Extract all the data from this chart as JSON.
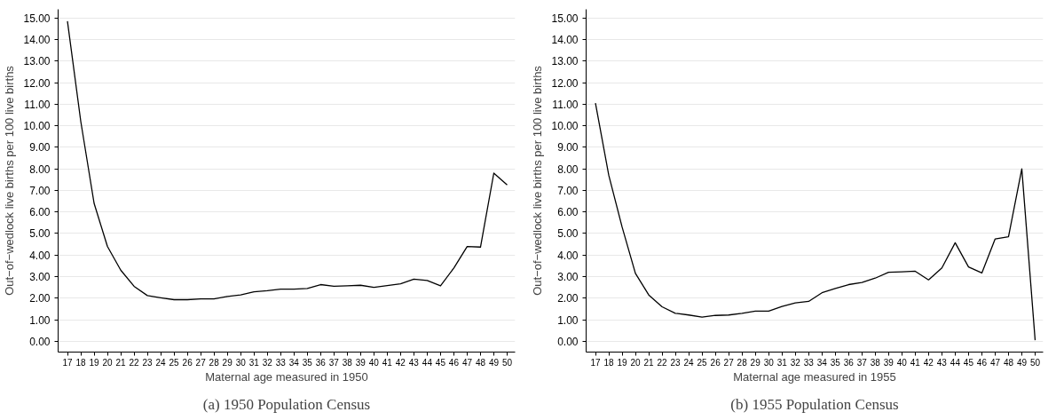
{
  "chart_data": [
    {
      "type": "line",
      "xlabel": "Maternal age measured in 1950",
      "ylabel": "Out−of−wedlock live births per 100 live births",
      "annotations": [
        "(a) 1950 Population Census"
      ],
      "x": [
        17,
        18,
        19,
        20,
        21,
        22,
        23,
        24,
        25,
        26,
        27,
        28,
        29,
        30,
        31,
        32,
        33,
        34,
        35,
        36,
        37,
        38,
        39,
        40,
        41,
        42,
        43,
        44,
        45,
        46,
        47,
        48,
        49,
        50
      ],
      "series": [
        {
          "color": "#000000",
          "values": [
            14.85,
            10.2,
            6.4,
            4.4,
            3.3,
            2.55,
            2.12,
            2.02,
            1.93,
            1.93,
            1.97,
            1.97,
            2.08,
            2.15,
            2.3,
            2.35,
            2.42,
            2.42,
            2.45,
            2.63,
            2.55,
            2.57,
            2.6,
            2.5,
            2.58,
            2.67,
            2.88,
            2.82,
            2.57,
            3.4,
            4.4,
            4.37,
            7.8,
            7.25
          ]
        }
      ],
      "xlim": [
        16.3,
        50.6
      ],
      "xticks": [
        17,
        18,
        19,
        20,
        21,
        22,
        23,
        24,
        25,
        26,
        27,
        28,
        29,
        30,
        31,
        32,
        33,
        34,
        35,
        36,
        37,
        38,
        39,
        40,
        41,
        42,
        43,
        44,
        45,
        46,
        47,
        48,
        49,
        50
      ],
      "ylim": [
        -0.5,
        15.4
      ],
      "yticks": [
        {
          "value": 0,
          "label": "0.00"
        },
        {
          "value": 1,
          "label": "1.00"
        },
        {
          "value": 2,
          "label": "2.00"
        },
        {
          "value": 3,
          "label": "3.00"
        },
        {
          "value": 4,
          "label": "4.00"
        },
        {
          "value": 5,
          "label": "5.00"
        },
        {
          "value": 6,
          "label": "6.00"
        },
        {
          "value": 7,
          "label": "7.00"
        },
        {
          "value": 8,
          "label": "8.00"
        },
        {
          "value": 9,
          "label": "9.00"
        },
        {
          "value": 10,
          "label": "10.00"
        },
        {
          "value": 11,
          "label": "11.00"
        },
        {
          "value": 12,
          "label": "12.00"
        },
        {
          "value": 13,
          "label": "13.00"
        },
        {
          "value": 14,
          "label": "14.00"
        },
        {
          "value": 15,
          "label": "15.00"
        }
      ],
      "grid": "y",
      "marker": "none",
      "line_style": "solid"
    },
    {
      "type": "line",
      "xlabel": "Maternal age measured in 1955",
      "ylabel": "Out−of−wedlock live births per 100 live births",
      "annotations": [
        "(b) 1955 Population Census"
      ],
      "x": [
        17,
        18,
        19,
        20,
        21,
        22,
        23,
        24,
        25,
        26,
        27,
        28,
        29,
        30,
        31,
        32,
        33,
        34,
        35,
        36,
        37,
        38,
        39,
        40,
        41,
        42,
        43,
        44,
        45,
        46,
        47,
        48,
        49,
        50
      ],
      "series": [
        {
          "color": "#000000",
          "values": [
            11.05,
            7.7,
            5.3,
            3.15,
            2.15,
            1.6,
            1.3,
            1.22,
            1.12,
            1.2,
            1.22,
            1.3,
            1.4,
            1.4,
            1.62,
            1.78,
            1.85,
            2.25,
            2.45,
            2.63,
            2.73,
            2.93,
            3.2,
            3.22,
            3.25,
            2.85,
            3.4,
            4.57,
            3.45,
            3.17,
            4.75,
            4.85,
            8.0,
            0.05
          ]
        }
      ],
      "xlim": [
        16.3,
        50.6
      ],
      "xticks": [
        17,
        18,
        19,
        20,
        21,
        22,
        23,
        24,
        25,
        26,
        27,
        28,
        29,
        30,
        31,
        32,
        33,
        34,
        35,
        36,
        37,
        38,
        39,
        40,
        41,
        42,
        43,
        44,
        45,
        46,
        47,
        48,
        49,
        50
      ],
      "ylim": [
        -0.5,
        15.4
      ],
      "yticks": [
        {
          "value": 0,
          "label": "0.00"
        },
        {
          "value": 1,
          "label": "1.00"
        },
        {
          "value": 2,
          "label": "2.00"
        },
        {
          "value": 3,
          "label": "3.00"
        },
        {
          "value": 4,
          "label": "4.00"
        },
        {
          "value": 5,
          "label": "5.00"
        },
        {
          "value": 6,
          "label": "6.00"
        },
        {
          "value": 7,
          "label": "7.00"
        },
        {
          "value": 8,
          "label": "8.00"
        },
        {
          "value": 9,
          "label": "9.00"
        },
        {
          "value": 10,
          "label": "10.00"
        },
        {
          "value": 11,
          "label": "11.00"
        },
        {
          "value": 12,
          "label": "12.00"
        },
        {
          "value": 13,
          "label": "13.00"
        },
        {
          "value": 14,
          "label": "14.00"
        },
        {
          "value": 15,
          "label": "15.00"
        }
      ],
      "grid": "y",
      "marker": "none",
      "line_style": "solid"
    }
  ]
}
